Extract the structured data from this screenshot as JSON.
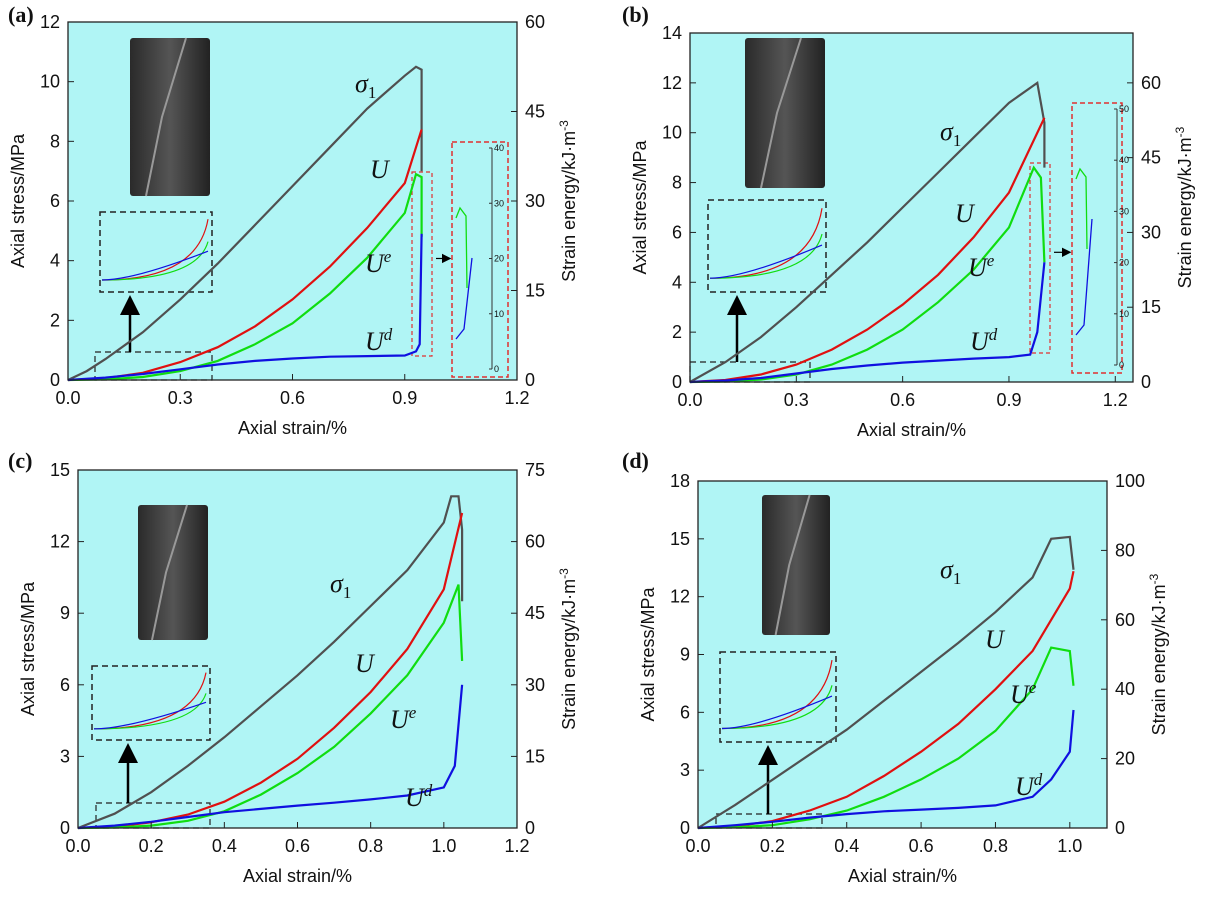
{
  "chart_data": [
    {
      "type": "line",
      "panel": "(a)",
      "xlabel": "Axial strain/%",
      "ylabel": "Axial stress/MPa",
      "y2label": "Strain energy/kJ·m",
      "y2label_sup": "-3",
      "xlim": [
        0,
        1.2
      ],
      "xticks": [
        {
          "value": 0,
          "label": "0.0"
        },
        0.3,
        0.6,
        0.9,
        1.2
      ],
      "ylim": [
        0,
        12
      ],
      "yticks": [
        0,
        2,
        4,
        6,
        8,
        10,
        12
      ],
      "y2lim": [
        0,
        60
      ],
      "y2ticks": [
        0,
        15,
        30,
        45,
        60
      ],
      "inset_ticks": [
        0,
        10,
        20,
        30,
        40
      ],
      "series": [
        {
          "name": "σ",
          "sub": "1",
          "color": "#505050",
          "x": [
            0,
            0.05,
            0.1,
            0.2,
            0.3,
            0.4,
            0.5,
            0.6,
            0.7,
            0.8,
            0.9,
            0.93,
            0.945,
            0.945
          ],
          "values": [
            0,
            0.3,
            0.7,
            1.6,
            2.7,
            3.9,
            5.2,
            6.5,
            7.8,
            9.1,
            10.2,
            10.5,
            10.4,
            7.0
          ]
        },
        {
          "name": "U",
          "color": "#e01010",
          "axis": "y2",
          "x": [
            0,
            0.1,
            0.2,
            0.3,
            0.4,
            0.5,
            0.6,
            0.7,
            0.8,
            0.9,
            0.945
          ],
          "values": [
            0,
            0.3,
            1.2,
            3,
            5.5,
            9,
            13.5,
            19,
            25.5,
            33,
            42
          ]
        },
        {
          "name": "U",
          "sup": "e",
          "color": "#10dd10",
          "axis": "y2",
          "x": [
            0,
            0.1,
            0.2,
            0.3,
            0.4,
            0.5,
            0.6,
            0.7,
            0.8,
            0.9,
            0.93,
            0.945,
            0.945
          ],
          "values": [
            0,
            0.1,
            0.5,
            1.5,
            3.2,
            6,
            9.5,
            14.5,
            20.5,
            28,
            34.5,
            34,
            24
          ]
        },
        {
          "name": "U",
          "sup": "d",
          "color": "#1010e0",
          "axis": "y2",
          "x": [
            0,
            0.1,
            0.2,
            0.3,
            0.4,
            0.5,
            0.6,
            0.7,
            0.8,
            0.9,
            0.93,
            0.94,
            0.945
          ],
          "values": [
            0,
            0.4,
            1,
            1.8,
            2.6,
            3.2,
            3.6,
            3.9,
            4,
            4.1,
            4.8,
            6,
            24.5
          ]
        }
      ]
    },
    {
      "type": "line",
      "panel": "(b)",
      "xlabel": "Axial strain/%",
      "ylabel": "Axial stress/MPa",
      "y2label": "Strain energy/kJ·m",
      "y2label_sup": "-3",
      "xlim": [
        0,
        1.25
      ],
      "xticks": [
        {
          "value": 0,
          "label": "0.0"
        },
        0.3,
        0.6,
        0.9,
        1.2
      ],
      "ylim": [
        0,
        14
      ],
      "yticks": [
        0,
        2,
        4,
        6,
        8,
        10,
        12,
        14
      ],
      "y2lim": [
        0,
        70
      ],
      "y2ticks": [
        0,
        15,
        30,
        45,
        60
      ],
      "inset_ticks": [
        0,
        10,
        20,
        30,
        40,
        50
      ],
      "series": [
        {
          "name": "σ",
          "sub": "1",
          "color": "#505050",
          "x": [
            0,
            0.1,
            0.2,
            0.3,
            0.4,
            0.5,
            0.6,
            0.7,
            0.8,
            0.9,
            0.98,
            1.0,
            1.0
          ],
          "values": [
            0,
            0.8,
            1.8,
            3,
            4.3,
            5.6,
            7,
            8.4,
            9.8,
            11.2,
            12,
            10.4,
            8.6
          ]
        },
        {
          "name": "U",
          "color": "#e01010",
          "axis": "y2",
          "x": [
            0,
            0.1,
            0.2,
            0.3,
            0.4,
            0.5,
            0.6,
            0.7,
            0.8,
            0.9,
            1.0
          ],
          "values": [
            0,
            0.4,
            1.5,
            3.5,
            6.5,
            10.5,
            15.5,
            21.5,
            29,
            38,
            53
          ]
        },
        {
          "name": "U",
          "sup": "e",
          "color": "#10dd10",
          "axis": "y2",
          "x": [
            0,
            0.1,
            0.2,
            0.3,
            0.4,
            0.5,
            0.6,
            0.7,
            0.8,
            0.9,
            0.97,
            0.99,
            1.0
          ],
          "values": [
            0,
            0.1,
            0.5,
            1.5,
            3.5,
            6.5,
            10.5,
            16,
            22.5,
            31,
            43,
            41,
            24
          ]
        },
        {
          "name": "U",
          "sup": "d",
          "color": "#1010e0",
          "axis": "y2",
          "x": [
            0,
            0.1,
            0.2,
            0.3,
            0.4,
            0.5,
            0.6,
            0.7,
            0.8,
            0.9,
            0.96,
            0.98,
            1.0
          ],
          "values": [
            0,
            0.3,
            0.8,
            1.7,
            2.6,
            3.3,
            3.9,
            4.3,
            4.7,
            5,
            5.5,
            10,
            24
          ]
        }
      ]
    },
    {
      "type": "line",
      "panel": "(c)",
      "xlabel": "Axial strain/%",
      "ylabel": "Axial stress/MPa",
      "y2label": "Strain energy/kJ·m",
      "y2label_sup": "-3",
      "xlim": [
        0,
        1.2
      ],
      "xticks": [
        {
          "value": 0,
          "label": "0.0"
        },
        0.2,
        0.4,
        0.6,
        0.8,
        {
          "value": 1,
          "label": "1.0"
        },
        1.2
      ],
      "ylim": [
        0,
        15
      ],
      "yticks": [
        0,
        3,
        6,
        9,
        12,
        15
      ],
      "y2lim": [
        0,
        75
      ],
      "y2ticks": [
        0,
        15,
        30,
        45,
        60,
        75
      ],
      "series": [
        {
          "name": "σ",
          "sub": "1",
          "color": "#505050",
          "x": [
            0,
            0.1,
            0.2,
            0.3,
            0.4,
            0.5,
            0.6,
            0.7,
            0.8,
            0.9,
            1.0,
            1.02,
            1.04,
            1.05,
            1.05
          ],
          "values": [
            0,
            0.6,
            1.5,
            2.6,
            3.8,
            5.1,
            6.4,
            7.8,
            9.3,
            10.8,
            12.8,
            13.9,
            13.9,
            12.5,
            9.5
          ]
        },
        {
          "name": "U",
          "color": "#e01010",
          "axis": "y2",
          "x": [
            0,
            0.1,
            0.2,
            0.3,
            0.4,
            0.5,
            0.6,
            0.7,
            0.8,
            0.9,
            1.0,
            1.05
          ],
          "values": [
            0,
            0.3,
            1.2,
            2.8,
            5.5,
            9.5,
            14.5,
            21,
            28.5,
            37.5,
            50,
            66
          ]
        },
        {
          "name": "U",
          "sup": "e",
          "color": "#10dd10",
          "axis": "y2",
          "x": [
            0,
            0.1,
            0.2,
            0.3,
            0.4,
            0.5,
            0.6,
            0.7,
            0.8,
            0.9,
            1.0,
            1.04,
            1.05
          ],
          "values": [
            0,
            0.1,
            0.5,
            1.5,
            3.5,
            7,
            11.5,
            17,
            24,
            32,
            43,
            51,
            35
          ]
        },
        {
          "name": "U",
          "sup": "d",
          "color": "#1010e0",
          "axis": "y2",
          "x": [
            0,
            0.1,
            0.2,
            0.3,
            0.4,
            0.5,
            0.6,
            0.7,
            0.8,
            0.9,
            1.0,
            1.03,
            1.05
          ],
          "values": [
            0,
            0.5,
            1.3,
            2.3,
            3.3,
            4,
            4.7,
            5.3,
            6,
            6.8,
            8.5,
            13,
            30
          ]
        }
      ]
    },
    {
      "type": "line",
      "panel": "(d)",
      "xlabel": "Axial strain/%",
      "ylabel": "Axial stress/MPa",
      "y2label": "Strain energy/kJ·m",
      "y2label_sup": "-3",
      "xlim": [
        0,
        1.1
      ],
      "xticks": [
        {
          "value": 0,
          "label": "0.0"
        },
        0.2,
        0.4,
        0.6,
        0.8,
        {
          "value": 1,
          "label": "1.0"
        }
      ],
      "ylim": [
        0,
        18
      ],
      "yticks": [
        0,
        3,
        6,
        9,
        12,
        15,
        18
      ],
      "y2lim": [
        0,
        100
      ],
      "y2ticks": [
        0,
        20,
        40,
        60,
        80,
        100
      ],
      "series": [
        {
          "name": "σ",
          "sub": "1",
          "color": "#505050",
          "x": [
            0,
            0.1,
            0.2,
            0.3,
            0.4,
            0.5,
            0.6,
            0.7,
            0.8,
            0.9,
            0.95,
            1.0,
            1.01
          ],
          "values": [
            0,
            1.2,
            2.5,
            3.8,
            5.1,
            6.6,
            8.1,
            9.6,
            11.2,
            13,
            15,
            15.1,
            13.4
          ]
        },
        {
          "name": "U",
          "color": "#e01010",
          "axis": "y2",
          "x": [
            0,
            0.1,
            0.2,
            0.3,
            0.4,
            0.5,
            0.6,
            0.7,
            0.8,
            0.9,
            1.0,
            1.01
          ],
          "values": [
            0,
            0.5,
            2,
            5,
            9,
            15,
            22,
            30,
            40,
            51,
            69,
            74
          ]
        },
        {
          "name": "U",
          "sup": "e",
          "color": "#10dd10",
          "axis": "y2",
          "x": [
            0,
            0.1,
            0.2,
            0.3,
            0.4,
            0.5,
            0.6,
            0.7,
            0.8,
            0.9,
            0.95,
            1.0,
            1.01
          ],
          "values": [
            0,
            0.2,
            0.8,
            2.5,
            5,
            9,
            14,
            20,
            28,
            40,
            52,
            51,
            41
          ]
        },
        {
          "name": "U",
          "sup": "d",
          "color": "#1010e0",
          "axis": "y2",
          "x": [
            0,
            0.1,
            0.2,
            0.3,
            0.4,
            0.5,
            0.6,
            0.7,
            0.8,
            0.9,
            0.95,
            1.0,
            1.01
          ],
          "values": [
            0,
            0.8,
            1.8,
            3,
            4,
            4.8,
            5.3,
            5.8,
            6.5,
            9,
            14,
            22,
            34
          ]
        }
      ]
    }
  ]
}
